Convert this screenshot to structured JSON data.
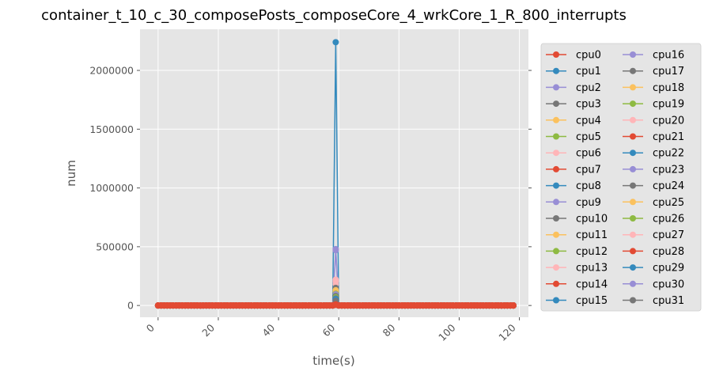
{
  "chart_data": {
    "type": "line",
    "title": "container_t_10_c_30_composePosts_composeCore_4_wrkCore_1_R_800_interrupts",
    "xlabel": "time(s)",
    "ylabel": "num",
    "xlim": [
      -6,
      123
    ],
    "ylim": [
      -100000,
      2350000
    ],
    "xticks": [
      0,
      20,
      40,
      60,
      80,
      100,
      120
    ],
    "xtick_labels": [
      "0",
      "20",
      "40",
      "60",
      "80",
      "100",
      "120"
    ],
    "yticks": [
      0,
      500000,
      1000000,
      1500000,
      2000000
    ],
    "ytick_labels": [
      "0",
      "500000",
      "1000000",
      "1500000",
      "2000000"
    ],
    "x": {
      "start": 0,
      "end": 118,
      "step": 1
    },
    "grid": true,
    "legend_placement": "outside-right",
    "spike_x": 59,
    "series": [
      {
        "name": "cpu0",
        "color": "#E24A33",
        "baseline": 0,
        "spike": 6000
      },
      {
        "name": "cpu1",
        "color": "#348ABD",
        "baseline": 0,
        "spike": 2240000
      },
      {
        "name": "cpu2",
        "color": "#988ED5",
        "baseline": 0,
        "spike": 60000
      },
      {
        "name": "cpu3",
        "color": "#777777",
        "baseline": 0,
        "spike": 30000
      },
      {
        "name": "cpu4",
        "color": "#FBC15E",
        "baseline": 0,
        "spike": 100000
      },
      {
        "name": "cpu5",
        "color": "#8EBA42",
        "baseline": 0,
        "spike": 80000
      },
      {
        "name": "cpu6",
        "color": "#FFB5B8",
        "baseline": 0,
        "spike": 180000
      },
      {
        "name": "cpu7",
        "color": "#E24A33",
        "baseline": 0,
        "spike": 5000
      },
      {
        "name": "cpu8",
        "color": "#348ABD",
        "baseline": 0,
        "spike": 70000
      },
      {
        "name": "cpu9",
        "color": "#988ED5",
        "baseline": 0,
        "spike": 470000
      },
      {
        "name": "cpu10",
        "color": "#777777",
        "baseline": 0,
        "spike": 40000
      },
      {
        "name": "cpu11",
        "color": "#FBC15E",
        "baseline": 0,
        "spike": 120000
      },
      {
        "name": "cpu12",
        "color": "#8EBA42",
        "baseline": 0,
        "spike": 90000
      },
      {
        "name": "cpu13",
        "color": "#FFB5B8",
        "baseline": 0,
        "spike": 200000
      },
      {
        "name": "cpu14",
        "color": "#E24A33",
        "baseline": 0,
        "spike": 8000
      },
      {
        "name": "cpu15",
        "color": "#348ABD",
        "baseline": 0,
        "spike": 50000
      },
      {
        "name": "cpu16",
        "color": "#988ED5",
        "baseline": 0,
        "spike": 480000
      },
      {
        "name": "cpu17",
        "color": "#777777",
        "baseline": 0,
        "spike": 60000
      },
      {
        "name": "cpu18",
        "color": "#FBC15E",
        "baseline": 0,
        "spike": 110000
      },
      {
        "name": "cpu19",
        "color": "#8EBA42",
        "baseline": 0,
        "spike": 70000
      },
      {
        "name": "cpu20",
        "color": "#FFB5B8",
        "baseline": 0,
        "spike": 210000
      },
      {
        "name": "cpu21",
        "color": "#E24A33",
        "baseline": 0,
        "spike": 7000
      },
      {
        "name": "cpu22",
        "color": "#348ABD",
        "baseline": 0,
        "spike": 45000
      },
      {
        "name": "cpu23",
        "color": "#988ED5",
        "baseline": 0,
        "spike": 90000
      },
      {
        "name": "cpu24",
        "color": "#777777",
        "baseline": 0,
        "spike": 80000
      },
      {
        "name": "cpu25",
        "color": "#FBC15E",
        "baseline": 0,
        "spike": 130000
      },
      {
        "name": "cpu26",
        "color": "#8EBA42",
        "baseline": 0,
        "spike": 100000
      },
      {
        "name": "cpu27",
        "color": "#FFB5B8",
        "baseline": 0,
        "spike": 220000
      },
      {
        "name": "cpu28",
        "color": "#E24A33",
        "baseline": 0,
        "spike": 9000
      },
      {
        "name": "cpu29",
        "color": "#348ABD",
        "baseline": 0,
        "spike": 55000
      },
      {
        "name": "cpu30",
        "color": "#988ED5",
        "baseline": 0,
        "spike": 95000
      },
      {
        "name": "cpu31",
        "color": "#777777",
        "baseline": 0,
        "spike": 150000
      }
    ]
  }
}
